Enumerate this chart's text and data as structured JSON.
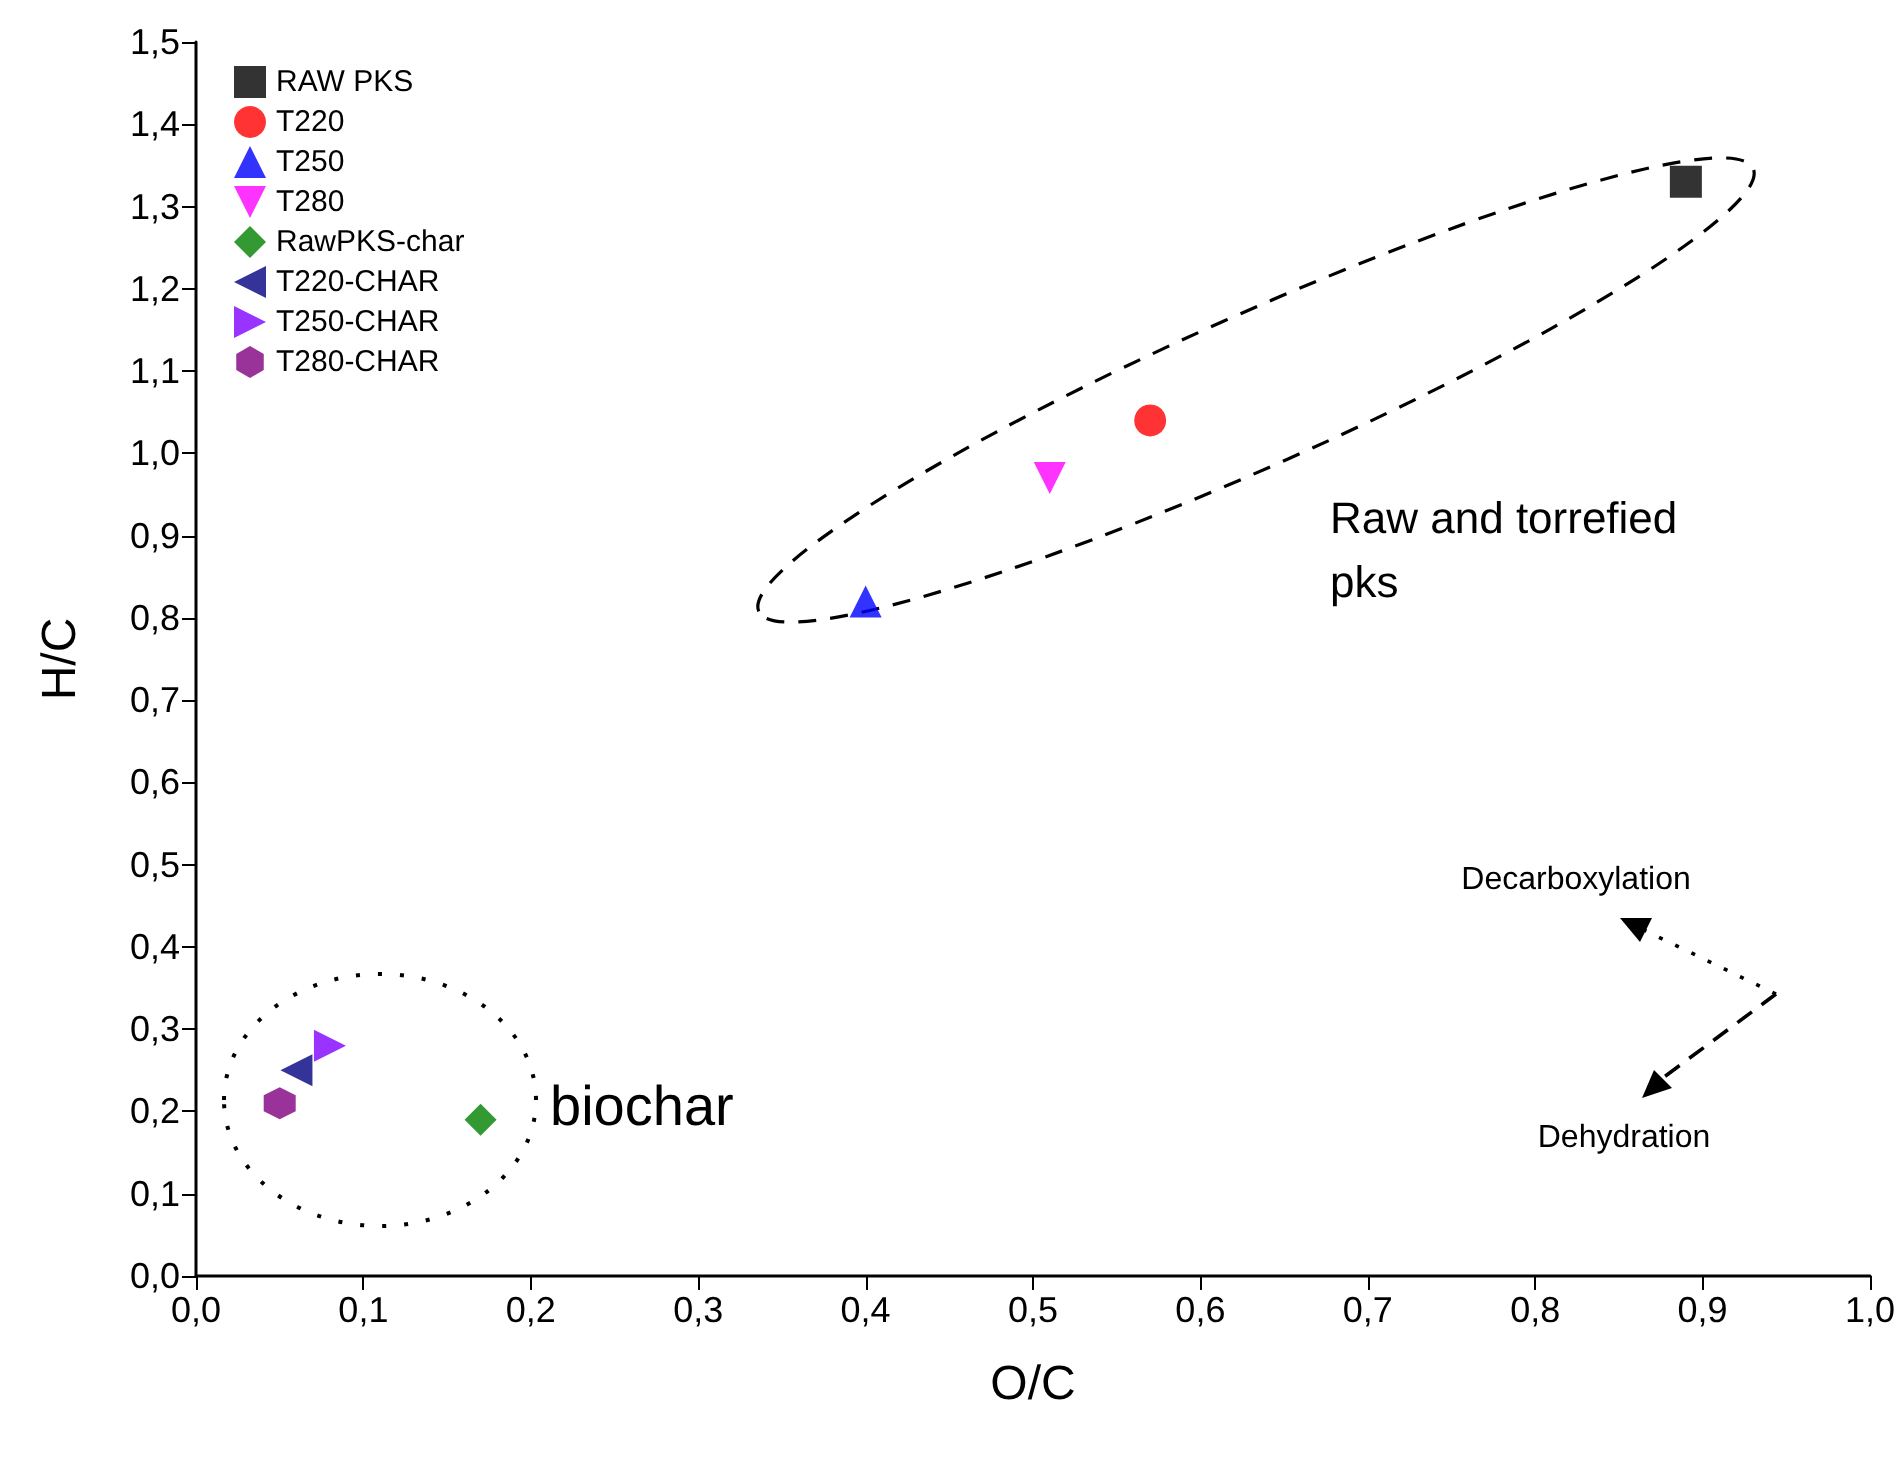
{
  "chart_data": {
    "type": "scatter",
    "xlabel": "O/C",
    "ylabel": "H/C",
    "xlim": [
      0,
      1.0
    ],
    "ylim": [
      0,
      1.5
    ],
    "xticks": [
      {
        "value": 0,
        "label": "0,0"
      },
      {
        "value": 0.1,
        "label": "0,1"
      },
      {
        "value": 0.2,
        "label": "0,2"
      },
      {
        "value": 0.3,
        "label": "0,3"
      },
      {
        "value": 0.4,
        "label": "0,4"
      },
      {
        "value": 0.5,
        "label": "0,5"
      },
      {
        "value": 0.6,
        "label": "0,6"
      },
      {
        "value": 0.7,
        "label": "0,7"
      },
      {
        "value": 0.8,
        "label": "0,8"
      },
      {
        "value": 0.9,
        "label": "0,9"
      },
      {
        "value": 1.0,
        "label": "1,0"
      }
    ],
    "yticks": [
      {
        "value": 0,
        "label": "0,0"
      },
      {
        "value": 0.1,
        "label": "0,1"
      },
      {
        "value": 0.2,
        "label": "0,2"
      },
      {
        "value": 0.3,
        "label": "0,3"
      },
      {
        "value": 0.4,
        "label": "0,4"
      },
      {
        "value": 0.5,
        "label": "0,5"
      },
      {
        "value": 0.6,
        "label": "0,6"
      },
      {
        "value": 0.7,
        "label": "0,7"
      },
      {
        "value": 0.8,
        "label": "0,8"
      },
      {
        "value": 0.9,
        "label": "0,9"
      },
      {
        "value": 1.0,
        "label": "1,0"
      },
      {
        "value": 1.1,
        "label": "1,1"
      },
      {
        "value": 1.2,
        "label": "1,2"
      },
      {
        "value": 1.3,
        "label": "1,3"
      },
      {
        "value": 1.4,
        "label": "1,4"
      },
      {
        "value": 1.5,
        "label": "1,5"
      }
    ],
    "grid": false,
    "legend": "top left",
    "series": [
      {
        "name": "RAW PKS",
        "color": "#000000",
        "marker": "square",
        "x": [
          0.89
        ],
        "values": [
          1.33
        ]
      },
      {
        "name": "T220",
        "color": "#ff0000",
        "marker": "circle",
        "x": [
          0.57
        ],
        "values": [
          1.04
        ]
      },
      {
        "name": "T250",
        "color": "#0000ff",
        "marker": "triangle",
        "x": [
          0.4
        ],
        "values": [
          0.82
        ]
      },
      {
        "name": "T280",
        "color": "#ff00ff",
        "marker": "triangle-down",
        "x": [
          0.51
        ],
        "values": [
          0.97
        ]
      },
      {
        "name": "RawPKS-char",
        "color": "#008000",
        "marker": "diamond",
        "x": [
          0.17
        ],
        "values": [
          0.19
        ]
      },
      {
        "name": "T220-CHAR",
        "color": "#000080",
        "marker": "triangle-left",
        "x": [
          0.06
        ],
        "values": [
          0.25
        ]
      },
      {
        "name": "T250-CHAR",
        "color": "#8000ff",
        "marker": "triangle-right",
        "x": [
          0.08
        ],
        "values": [
          0.28
        ]
      },
      {
        "name": "T280-CHAR",
        "color": "#800080",
        "x": [
          0.05
        ],
        "values": [
          0.21
        ]
      }
    ],
    "annotations": [
      "Raw and torrefied pks",
      "biochar",
      "Decarboxylation",
      "Dehydration"
    ]
  }
}
